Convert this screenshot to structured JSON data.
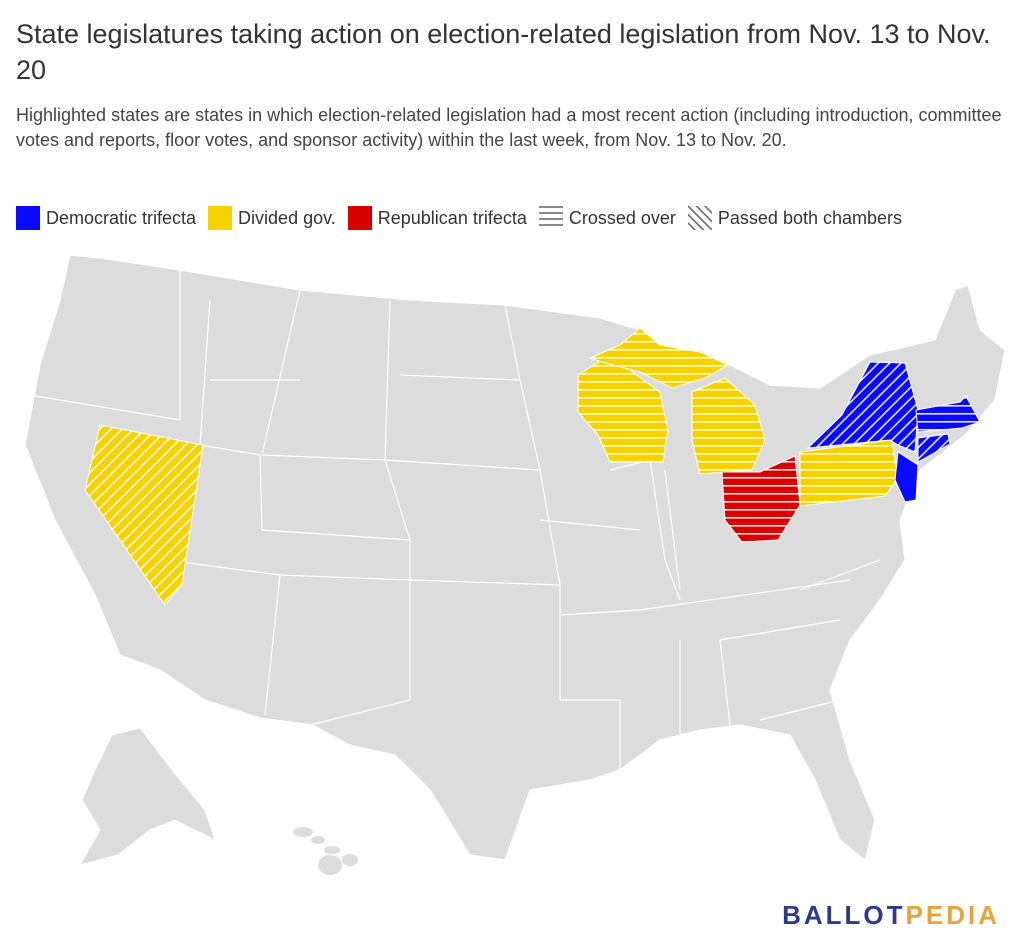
{
  "title": "State legislatures taking action on election-related legislation from Nov. 13 to Nov. 20",
  "subtitle": "Highlighted states are states in which election-related legislation had a most recent action (including introduction, committee votes and reports, floor votes, and sponsor activity) within the last week, from Nov. 13 to Nov. 20.",
  "legend": [
    {
      "label": "Democratic trifecta",
      "color": "#0a0aff"
    },
    {
      "label": "Divided gov.",
      "color": "#f5d200"
    },
    {
      "label": "Republican trifecta",
      "color": "#d90000"
    },
    {
      "label": "Crossed over",
      "pattern": "horizontal-lines"
    },
    {
      "label": "Passed both chambers",
      "pattern": "diagonal-lines"
    }
  ],
  "colors": {
    "base": "#dcdcdc",
    "border": "#ffffff",
    "democratic": "#0a0aff",
    "divided": "#f5d200",
    "republican": "#d90000"
  },
  "highlighted_states": [
    {
      "state": "Nevada",
      "category": "Divided gov.",
      "pattern": "Passed both chambers"
    },
    {
      "state": "Wisconsin",
      "category": "Divided gov.",
      "pattern": "Crossed over"
    },
    {
      "state": "Michigan",
      "category": "Divided gov.",
      "pattern": "Crossed over"
    },
    {
      "state": "Pennsylvania",
      "category": "Divided gov.",
      "pattern": "Crossed over"
    },
    {
      "state": "Ohio",
      "category": "Republican trifecta",
      "pattern": "Crossed over"
    },
    {
      "state": "New York",
      "category": "Democratic trifecta",
      "pattern": "Passed both chambers"
    },
    {
      "state": "Massachusetts",
      "category": "Democratic trifecta",
      "pattern": "Crossed over"
    },
    {
      "state": "Connecticut",
      "category": "Democratic trifecta",
      "pattern": "Passed both chambers"
    },
    {
      "state": "New Jersey",
      "category": "Democratic trifecta",
      "pattern": "none"
    }
  ],
  "logo": {
    "part1": "BALLOT",
    "part2": "PEDIA"
  }
}
